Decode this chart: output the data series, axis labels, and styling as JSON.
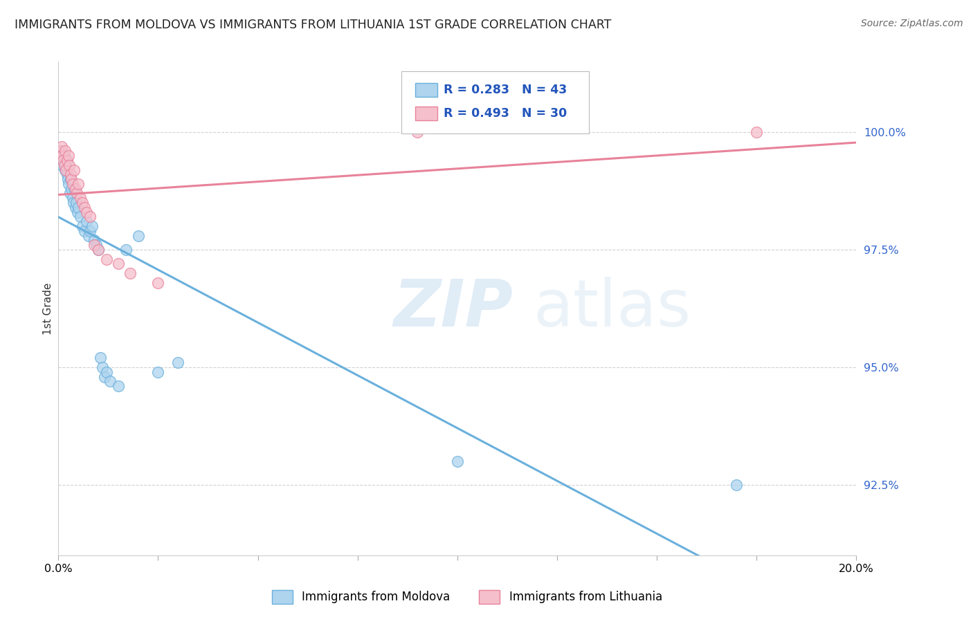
{
  "title": "IMMIGRANTS FROM MOLDOVA VS IMMIGRANTS FROM LITHUANIA 1ST GRADE CORRELATION CHART",
  "source": "Source: ZipAtlas.com",
  "ylabel": "1st Grade",
  "x_min": 0.0,
  "x_max": 20.0,
  "y_min": 91.0,
  "y_max": 101.5,
  "moldova_color": "#6ab0dc",
  "moldova_color_fill": "#aed4ee",
  "lithuania_color": "#e8829a",
  "lithuania_color_fill": "#f5bfcc",
  "moldova_R": 0.283,
  "moldova_N": 43,
  "lithuania_R": 0.493,
  "lithuania_N": 30,
  "moldova_scatter_x": [
    0.05,
    0.08,
    0.1,
    0.12,
    0.15,
    0.17,
    0.19,
    0.2,
    0.22,
    0.24,
    0.26,
    0.28,
    0.3,
    0.32,
    0.35,
    0.37,
    0.4,
    0.42,
    0.45,
    0.48,
    0.5,
    0.55,
    0.6,
    0.65,
    0.7,
    0.75,
    0.8,
    0.85,
    0.9,
    0.95,
    1.0,
    1.05,
    1.1,
    1.15,
    1.2,
    1.3,
    1.5,
    1.7,
    2.0,
    2.5,
    3.0,
    10.0,
    17.0
  ],
  "moldova_scatter_y": [
    99.6,
    99.5,
    99.3,
    99.4,
    99.5,
    99.2,
    99.3,
    99.4,
    99.1,
    99.0,
    98.9,
    98.7,
    99.0,
    98.8,
    98.6,
    98.5,
    98.8,
    98.4,
    98.5,
    98.3,
    98.4,
    98.2,
    98.0,
    97.9,
    98.1,
    97.8,
    97.9,
    98.0,
    97.7,
    97.6,
    97.5,
    95.2,
    95.0,
    94.8,
    94.9,
    94.7,
    94.6,
    97.5,
    97.8,
    94.9,
    95.1,
    93.0,
    92.5
  ],
  "lithuania_scatter_x": [
    0.05,
    0.08,
    0.1,
    0.12,
    0.15,
    0.17,
    0.19,
    0.22,
    0.25,
    0.27,
    0.3,
    0.33,
    0.36,
    0.4,
    0.43,
    0.46,
    0.5,
    0.55,
    0.6,
    0.65,
    0.7,
    0.8,
    0.9,
    1.0,
    1.2,
    1.5,
    1.8,
    2.5,
    9.0,
    17.5
  ],
  "lithuania_scatter_y": [
    99.6,
    99.7,
    99.5,
    99.4,
    99.3,
    99.6,
    99.2,
    99.4,
    99.5,
    99.3,
    99.1,
    99.0,
    98.9,
    99.2,
    98.8,
    98.7,
    98.9,
    98.6,
    98.5,
    98.4,
    98.3,
    98.2,
    97.6,
    97.5,
    97.3,
    97.2,
    97.0,
    96.8,
    100.0,
    100.0
  ],
  "background_color": "#ffffff",
  "grid_color": "#d0d0d0",
  "watermark_zip": "ZIP",
  "watermark_atlas": "atlas",
  "legend_moldova": "Immigrants from Moldova",
  "legend_lithuania": "Immigrants from Lithuania",
  "yticks": [
    92.5,
    95.0,
    97.5,
    100.0
  ],
  "xtick_positions": [
    0.0,
    2.5,
    5.0,
    7.5,
    10.0,
    12.5,
    15.0,
    17.5,
    20.0
  ]
}
